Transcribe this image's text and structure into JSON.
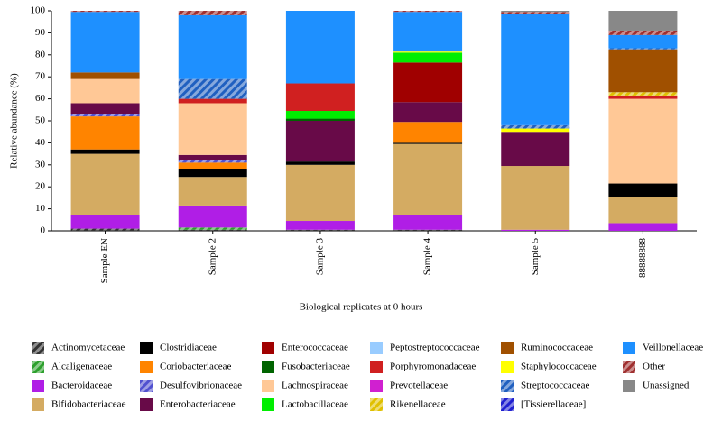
{
  "chart_data": {
    "type": "stacked_bar",
    "y_label": "Relative abundance (%)",
    "x_label": "Biological replicates at 0 hours",
    "categories": [
      "Sample EN",
      "Sample 2",
      "Sample 3",
      "Sample 4",
      "Sample 5",
      "88888888"
    ],
    "ylim": [
      0,
      100
    ],
    "yticks": [
      0,
      10,
      20,
      30,
      40,
      50,
      60,
      70,
      80,
      90,
      100
    ],
    "series": [
      {
        "name": "Actinomycetaceae",
        "color": "#333333",
        "hatch": true,
        "values": [
          1,
          0.5,
          0.5,
          0.5,
          0,
          0
        ]
      },
      {
        "name": "Alcaligenaceae",
        "color": "#2ca02c",
        "hatch": true,
        "values": [
          0,
          1,
          0,
          0,
          0,
          0
        ]
      },
      {
        "name": "Bacteroidaceae",
        "color": "#b01ee6",
        "values": [
          6,
          10,
          4,
          6.5,
          0.5,
          3.5
        ]
      },
      {
        "name": "Bifidobacteriaceae",
        "color": "#d4ab62",
        "values": [
          28,
          13,
          25.5,
          32.5,
          29,
          12
        ]
      },
      {
        "name": "Clostridiaceae",
        "color": "#000000",
        "values": [
          2,
          3.5,
          1.5,
          0.5,
          0,
          6
        ]
      },
      {
        "name": "Coriobacteriaceae",
        "color": "#ff8400",
        "values": [
          15,
          3,
          0,
          9.5,
          0,
          0
        ]
      },
      {
        "name": "Desulfovibrionaceae",
        "color": "#5050d0",
        "hatch": true,
        "values": [
          1,
          1,
          0,
          0,
          0,
          0
        ]
      },
      {
        "name": "Enterobacteriaceae",
        "color": "#680a48",
        "values": [
          5,
          2.5,
          18.5,
          9,
          15.5,
          0
        ]
      },
      {
        "name": "Enterococcaceae",
        "color": "#a00000",
        "values": [
          0,
          0,
          0,
          18,
          0,
          0
        ]
      },
      {
        "name": "Fusobacteriaceae",
        "color": "#006400",
        "values": [
          0,
          0,
          1,
          0,
          0,
          0
        ]
      },
      {
        "name": "Lachnospiraceae",
        "color": "#ffc896",
        "values": [
          11,
          23.5,
          0,
          0,
          0,
          38.5
        ]
      },
      {
        "name": "Lactobacillaceae",
        "color": "#00ee00",
        "values": [
          0,
          0,
          3.5,
          4.5,
          0,
          0
        ]
      },
      {
        "name": "Peptostreptococcaceae",
        "color": "#99ccff",
        "values": [
          0,
          0,
          0,
          0,
          0,
          0
        ]
      },
      {
        "name": "Porphyromonadaceae",
        "color": "#d02020",
        "values": [
          0,
          2,
          12.5,
          0,
          0,
          1.5
        ]
      },
      {
        "name": "Prevotellaceae",
        "color": "#d020d0",
        "values": [
          0,
          0,
          0,
          0,
          0,
          0
        ]
      },
      {
        "name": "Rikenellaceae",
        "color": "#e0c000",
        "hatch": true,
        "values": [
          0,
          0,
          0,
          0,
          0,
          1.5
        ]
      },
      {
        "name": "Ruminococcaceae",
        "color": "#a05000",
        "values": [
          3,
          0,
          0,
          0,
          0,
          19.5
        ]
      },
      {
        "name": "Staphylococcaceae",
        "color": "#ffff00",
        "values": [
          0,
          0,
          0,
          0.5,
          1.5,
          0
        ]
      },
      {
        "name": "Streptococcaceae",
        "color": "#2060c0",
        "hatch": true,
        "values": [
          0,
          9,
          0,
          0,
          1.5,
          0.5
        ]
      },
      {
        "name": "[Tissierellaceae]",
        "color": "#2020d0",
        "hatch": true,
        "values": [
          0,
          0,
          0,
          0,
          0,
          0
        ]
      },
      {
        "name": "Veillonellaceae",
        "color": "#1e90ff",
        "values": [
          27.5,
          29,
          33,
          18,
          50.5,
          6
        ]
      },
      {
        "name": "Other",
        "color": "#a03030",
        "hatch": true,
        "values": [
          0.5,
          2,
          0,
          0.5,
          1,
          2
        ]
      },
      {
        "name": "Unassigned",
        "color": "#888888",
        "values": [
          0,
          0,
          0,
          0,
          0.5,
          9
        ]
      }
    ]
  }
}
